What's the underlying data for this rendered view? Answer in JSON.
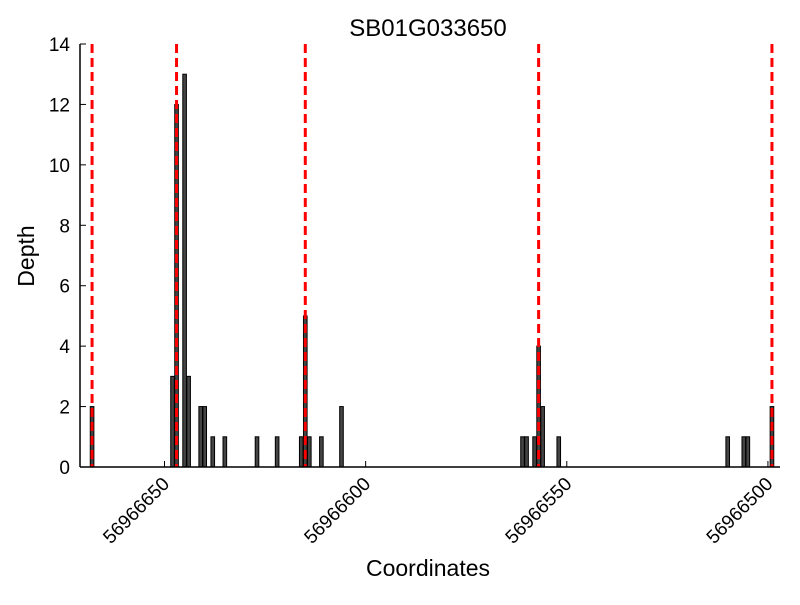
{
  "chart_data": {
    "type": "bar",
    "title": "SB01G033650",
    "xlabel": "Coordinates",
    "ylabel": "Depth",
    "xlim": [
      56966671,
      56966497
    ],
    "ylim": [
      0,
      14
    ],
    "x_ticks": [
      56966650,
      56966600,
      56966550,
      56966500
    ],
    "y_ticks": [
      0,
      2,
      4,
      6,
      8,
      10,
      12,
      14
    ],
    "x_tick_labels": [
      "56966650",
      "56966600",
      "56966550",
      "56966500"
    ],
    "y_tick_labels": [
      "0",
      "2",
      "4",
      "6",
      "8",
      "10",
      "12",
      "14"
    ],
    "bars": [
      {
        "x": 56966668,
        "depth": 2
      },
      {
        "x": 56966648,
        "depth": 3
      },
      {
        "x": 56966647,
        "depth": 12
      },
      {
        "x": 56966645,
        "depth": 13
      },
      {
        "x": 56966644,
        "depth": 3
      },
      {
        "x": 56966641,
        "depth": 2
      },
      {
        "x": 56966640,
        "depth": 2
      },
      {
        "x": 56966638,
        "depth": 1
      },
      {
        "x": 56966635,
        "depth": 1
      },
      {
        "x": 56966627,
        "depth": 1
      },
      {
        "x": 56966622,
        "depth": 1
      },
      {
        "x": 56966616,
        "depth": 1
      },
      {
        "x": 56966615,
        "depth": 5
      },
      {
        "x": 56966614,
        "depth": 1
      },
      {
        "x": 56966611,
        "depth": 1
      },
      {
        "x": 56966606,
        "depth": 2
      },
      {
        "x": 56966561,
        "depth": 1
      },
      {
        "x": 56966560,
        "depth": 1
      },
      {
        "x": 56966558,
        "depth": 1
      },
      {
        "x": 56966557,
        "depth": 4
      },
      {
        "x": 56966556,
        "depth": 2
      },
      {
        "x": 56966552,
        "depth": 1
      },
      {
        "x": 56966510,
        "depth": 1
      },
      {
        "x": 56966506,
        "depth": 1
      },
      {
        "x": 56966505,
        "depth": 1
      },
      {
        "x": 56966499,
        "depth": 2
      }
    ],
    "bar_color": "#444444",
    "exon_boundaries": [
      56966668,
      56966647,
      56966615,
      56966557,
      56966499
    ],
    "boundary_color": "#ff0000",
    "grid": false
  }
}
